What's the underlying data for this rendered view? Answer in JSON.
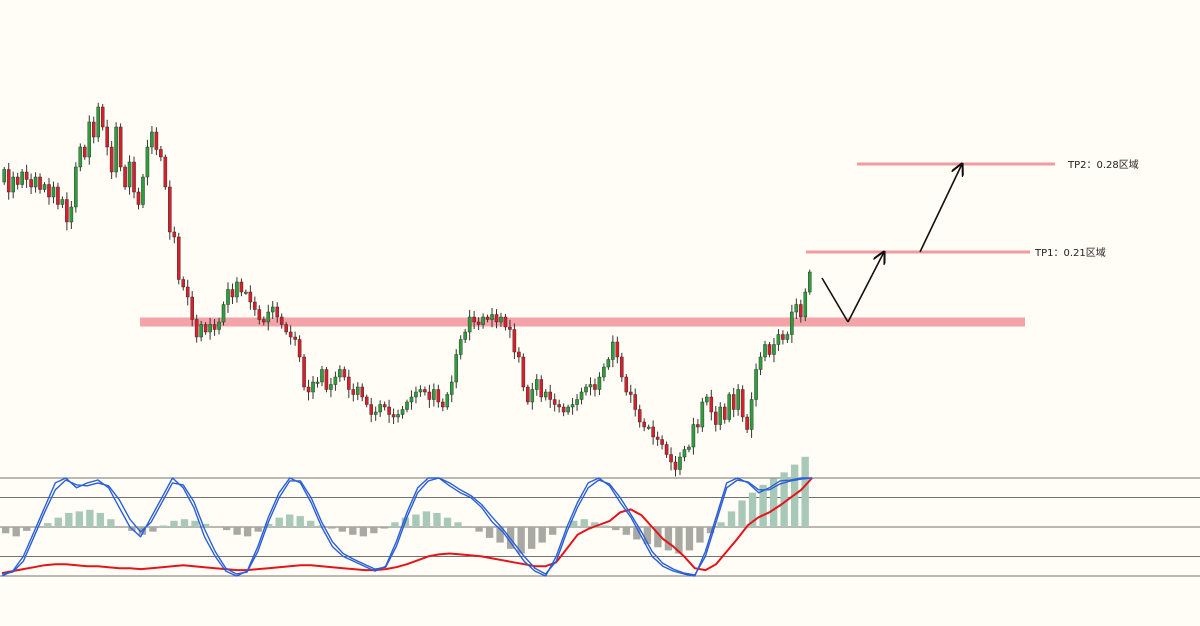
{
  "chart_data": {
    "type": "candlestick",
    "title": "",
    "colors": {
      "background": "#fffdf5",
      "bull": "#2e9e3c",
      "bear": "#d6202b",
      "support": "#f4a3a8",
      "target": "#f29aa0",
      "stoch_blue": "#2a5fd6",
      "stoch_red": "#e4141b",
      "hist_neg": "#a9a9a3",
      "hist_pos": "#a8c8b8",
      "ref_line": "#444444"
    },
    "candles": [
      {
        "o": 0.56,
        "c": 0.61
      },
      {
        "o": 0.61,
        "c": 0.52
      },
      {
        "o": 0.52,
        "c": 0.58
      },
      {
        "o": 0.58,
        "c": 0.55
      },
      {
        "o": 0.55,
        "c": 0.6
      },
      {
        "o": 0.6,
        "c": 0.57
      },
      {
        "o": 0.57,
        "c": 0.54
      },
      {
        "o": 0.54,
        "c": 0.58
      },
      {
        "o": 0.58,
        "c": 0.53
      },
      {
        "o": 0.53,
        "c": 0.55
      },
      {
        "o": 0.55,
        "c": 0.5
      },
      {
        "o": 0.5,
        "c": 0.54
      },
      {
        "o": 0.54,
        "c": 0.47
      },
      {
        "o": 0.47,
        "c": 0.49
      },
      {
        "o": 0.49,
        "c": 0.4
      },
      {
        "o": 0.4,
        "c": 0.46
      },
      {
        "o": 0.46,
        "c": 0.62
      },
      {
        "o": 0.62,
        "c": 0.7
      },
      {
        "o": 0.7,
        "c": 0.66
      },
      {
        "o": 0.66,
        "c": 0.8
      },
      {
        "o": 0.8,
        "c": 0.74
      },
      {
        "o": 0.74,
        "c": 0.86
      },
      {
        "o": 0.86,
        "c": 0.78
      },
      {
        "o": 0.78,
        "c": 0.7
      },
      {
        "o": 0.7,
        "c": 0.6
      },
      {
        "o": 0.6,
        "c": 0.78
      },
      {
        "o": 0.78,
        "c": 0.62
      },
      {
        "o": 0.62,
        "c": 0.54
      },
      {
        "o": 0.54,
        "c": 0.64
      },
      {
        "o": 0.64,
        "c": 0.52
      },
      {
        "o": 0.52,
        "c": 0.47
      },
      {
        "o": 0.47,
        "c": 0.58
      },
      {
        "o": 0.58,
        "c": 0.7
      },
      {
        "o": 0.7,
        "c": 0.76
      },
      {
        "o": 0.76,
        "c": 0.69
      },
      {
        "o": 0.69,
        "c": 0.66
      },
      {
        "o": 0.66,
        "c": 0.54
      },
      {
        "o": 0.54,
        "c": 0.36
      },
      {
        "o": 0.36,
        "c": 0.34
      },
      {
        "o": 0.34,
        "c": 0.17
      },
      {
        "o": 0.17,
        "c": 0.14
      },
      {
        "o": 0.14,
        "c": 0.1
      },
      {
        "o": 0.1,
        "c": 0.01
      },
      {
        "o": 0.01,
        "c": -0.06
      },
      {
        "o": -0.06,
        "c": -0.01
      },
      {
        "o": -0.01,
        "c": -0.04
      },
      {
        "o": -0.04,
        "c": -0.01
      },
      {
        "o": -0.01,
        "c": -0.03
      },
      {
        "o": -0.03,
        "c": 0.0
      },
      {
        "o": 0.0,
        "c": 0.07
      },
      {
        "o": 0.07,
        "c": 0.13
      },
      {
        "o": 0.13,
        "c": 0.1
      },
      {
        "o": 0.1,
        "c": 0.16
      },
      {
        "o": 0.16,
        "c": 0.12
      },
      {
        "o": 0.12,
        "c": 0.12
      },
      {
        "o": 0.12,
        "c": 0.08
      },
      {
        "o": 0.08,
        "c": 0.05
      },
      {
        "o": 0.05,
        "c": 0.01
      },
      {
        "o": 0.01,
        "c": 0.0
      },
      {
        "o": 0.0,
        "c": 0.04
      },
      {
        "o": 0.04,
        "c": 0.06
      },
      {
        "o": 0.06,
        "c": 0.02
      },
      {
        "o": 0.02,
        "c": -0.01
      },
      {
        "o": -0.01,
        "c": -0.04
      },
      {
        "o": -0.04,
        "c": -0.06
      },
      {
        "o": -0.06,
        "c": -0.07
      },
      {
        "o": -0.07,
        "c": -0.14
      },
      {
        "o": -0.14,
        "c": -0.26
      },
      {
        "o": -0.26,
        "c": -0.28
      },
      {
        "o": -0.28,
        "c": -0.24
      },
      {
        "o": -0.24,
        "c": -0.24
      },
      {
        "o": -0.24,
        "c": -0.19
      },
      {
        "o": -0.19,
        "c": -0.27
      },
      {
        "o": -0.27,
        "c": -0.25
      },
      {
        "o": -0.25,
        "c": -0.22
      },
      {
        "o": -0.22,
        "c": -0.19
      },
      {
        "o": -0.19,
        "c": -0.22
      },
      {
        "o": -0.22,
        "c": -0.27
      },
      {
        "o": -0.27,
        "c": -0.29
      },
      {
        "o": -0.29,
        "c": -0.26
      },
      {
        "o": -0.26,
        "c": -0.3
      },
      {
        "o": -0.3,
        "c": -0.33
      },
      {
        "o": -0.33,
        "c": -0.37
      },
      {
        "o": -0.37,
        "c": -0.36
      },
      {
        "o": -0.36,
        "c": -0.33
      },
      {
        "o": -0.33,
        "c": -0.34
      },
      {
        "o": -0.34,
        "c": -0.37
      },
      {
        "o": -0.37,
        "c": -0.38
      },
      {
        "o": -0.38,
        "c": -0.37
      },
      {
        "o": -0.37,
        "c": -0.35
      },
      {
        "o": -0.35,
        "c": -0.32
      },
      {
        "o": -0.32,
        "c": -0.3
      },
      {
        "o": -0.3,
        "c": -0.28
      },
      {
        "o": -0.28,
        "c": -0.27
      },
      {
        "o": -0.27,
        "c": -0.28
      },
      {
        "o": -0.28,
        "c": -0.31
      },
      {
        "o": -0.31,
        "c": -0.27
      },
      {
        "o": -0.27,
        "c": -0.32
      },
      {
        "o": -0.32,
        "c": -0.34
      },
      {
        "o": -0.34,
        "c": -0.29
      },
      {
        "o": -0.29,
        "c": -0.24
      },
      {
        "o": -0.24,
        "c": -0.13
      },
      {
        "o": -0.13,
        "c": -0.07
      },
      {
        "o": -0.07,
        "c": -0.04
      },
      {
        "o": -0.04,
        "c": 0.02
      },
      {
        "o": 0.02,
        "c": 0.0
      },
      {
        "o": 0.0,
        "c": -0.01
      },
      {
        "o": -0.01,
        "c": 0.02
      },
      {
        "o": 0.02,
        "c": 0.01
      },
      {
        "o": 0.01,
        "c": 0.03
      },
      {
        "o": 0.03,
        "c": 0.0
      },
      {
        "o": 0.0,
        "c": 0.02
      },
      {
        "o": 0.02,
        "c": -0.02
      },
      {
        "o": -0.02,
        "c": -0.03
      },
      {
        "o": -0.03,
        "c": -0.12
      },
      {
        "o": -0.12,
        "c": -0.14
      },
      {
        "o": -0.14,
        "c": -0.26
      },
      {
        "o": -0.26,
        "c": -0.32
      },
      {
        "o": -0.32,
        "c": -0.27
      },
      {
        "o": -0.27,
        "c": -0.23
      },
      {
        "o": -0.23,
        "c": -0.3
      },
      {
        "o": -0.3,
        "c": -0.28
      },
      {
        "o": -0.28,
        "c": -0.31
      },
      {
        "o": -0.31,
        "c": -0.33
      },
      {
        "o": -0.33,
        "c": -0.34
      },
      {
        "o": -0.34,
        "c": -0.36
      },
      {
        "o": -0.36,
        "c": -0.34
      },
      {
        "o": -0.34,
        "c": -0.33
      },
      {
        "o": -0.33,
        "c": -0.31
      },
      {
        "o": -0.31,
        "c": -0.28
      },
      {
        "o": -0.28,
        "c": -0.26
      },
      {
        "o": -0.26,
        "c": -0.25
      },
      {
        "o": -0.25,
        "c": -0.27
      },
      {
        "o": -0.27,
        "c": -0.22
      },
      {
        "o": -0.22,
        "c": -0.18
      },
      {
        "o": -0.18,
        "c": -0.15
      },
      {
        "o": -0.15,
        "c": -0.08
      },
      {
        "o": -0.08,
        "c": -0.14
      },
      {
        "o": -0.14,
        "c": -0.22
      },
      {
        "o": -0.22,
        "c": -0.28
      },
      {
        "o": -0.28,
        "c": -0.29
      },
      {
        "o": -0.29,
        "c": -0.35
      },
      {
        "o": -0.35,
        "c": -0.4
      },
      {
        "o": -0.4,
        "c": -0.42
      },
      {
        "o": -0.42,
        "c": -0.42
      },
      {
        "o": -0.42,
        "c": -0.46
      },
      {
        "o": -0.46,
        "c": -0.47
      },
      {
        "o": -0.47,
        "c": -0.49
      },
      {
        "o": -0.49,
        "c": -0.53
      },
      {
        "o": -0.53,
        "c": -0.56
      },
      {
        "o": -0.56,
        "c": -0.59
      },
      {
        "o": -0.59,
        "c": -0.54
      },
      {
        "o": -0.54,
        "c": -0.51
      },
      {
        "o": -0.51,
        "c": -0.5
      },
      {
        "o": -0.5,
        "c": -0.41
      },
      {
        "o": -0.41,
        "c": -0.42
      },
      {
        "o": -0.42,
        "c": -0.32
      },
      {
        "o": -0.32,
        "c": -0.3
      },
      {
        "o": -0.3,
        "c": -0.36
      },
      {
        "o": -0.36,
        "c": -0.41
      },
      {
        "o": -0.41,
        "c": -0.34
      },
      {
        "o": -0.34,
        "c": -0.39
      },
      {
        "o": -0.39,
        "c": -0.29
      },
      {
        "o": -0.29,
        "c": -0.35
      },
      {
        "o": -0.35,
        "c": -0.27
      },
      {
        "o": -0.27,
        "c": -0.38
      },
      {
        "o": -0.38,
        "c": -0.43
      },
      {
        "o": -0.43,
        "c": -0.31
      },
      {
        "o": -0.31,
        "c": -0.19
      },
      {
        "o": -0.19,
        "c": -0.14
      },
      {
        "o": -0.14,
        "c": -0.09
      },
      {
        "o": -0.09,
        "c": -0.13
      },
      {
        "o": -0.13,
        "c": -0.09
      },
      {
        "o": -0.09,
        "c": -0.05
      },
      {
        "o": -0.05,
        "c": -0.07
      },
      {
        "o": -0.07,
        "c": -0.05
      },
      {
        "o": -0.05,
        "c": 0.04
      },
      {
        "o": 0.04,
        "c": 0.07
      },
      {
        "o": 0.07,
        "c": 0.02
      },
      {
        "o": 0.02,
        "c": 0.12
      },
      {
        "o": 0.12,
        "c": 0.2
      }
    ],
    "levels": [
      {
        "name": "support",
        "value": 0.0
      },
      {
        "name": "TP1",
        "value": 0.21,
        "label": "TP1：0.21区域"
      },
      {
        "name": "TP2",
        "value": 0.28,
        "label": "TP2：0.28区域"
      }
    ],
    "projection": {
      "path": [
        0.2,
        0.0,
        0.21,
        0.21,
        0.28
      ]
    },
    "oscillator": {
      "levels": [
        100,
        80,
        50,
        20,
        0
      ],
      "blue_k": [
        0,
        5,
        20,
        45,
        70,
        95,
        100,
        90,
        95,
        98,
        90,
        70,
        50,
        40,
        60,
        80,
        100,
        90,
        70,
        40,
        20,
        5,
        0,
        5,
        30,
        60,
        85,
        100,
        95,
        75,
        50,
        30,
        20,
        15,
        10,
        5,
        10,
        35,
        65,
        90,
        100,
        100,
        92,
        85,
        80,
        70,
        55,
        45,
        30,
        15,
        5,
        0,
        20,
        50,
        75,
        95,
        100,
        92,
        75,
        60,
        40,
        20,
        10,
        5,
        2,
        0,
        25,
        60,
        95,
        100,
        95,
        85,
        90,
        97,
        98,
        100,
        100
      ],
      "blue_d": [
        2,
        4,
        15,
        40,
        65,
        88,
        98,
        93,
        92,
        95,
        92,
        78,
        58,
        45,
        55,
        75,
        95,
        93,
        76,
        48,
        25,
        8,
        2,
        4,
        25,
        55,
        80,
        97,
        97,
        80,
        55,
        35,
        23,
        17,
        12,
        7,
        9,
        30,
        60,
        85,
        97,
        100,
        95,
        88,
        82,
        73,
        60,
        48,
        34,
        20,
        8,
        2,
        15,
        45,
        70,
        90,
        98,
        94,
        80,
        63,
        45,
        25,
        13,
        7,
        3,
        1,
        20,
        55,
        90,
        98,
        96,
        88,
        88,
        94,
        97,
        99,
        100
      ],
      "red": [
        3,
        5,
        7,
        9,
        11,
        12,
        12,
        11,
        10,
        10,
        9,
        8,
        8,
        7,
        8,
        9,
        10,
        11,
        10,
        9,
        8,
        7,
        6,
        6,
        7,
        8,
        9,
        10,
        11,
        11,
        10,
        9,
        8,
        7,
        6,
        6,
        7,
        9,
        12,
        16,
        20,
        22,
        23,
        22,
        21,
        20,
        18,
        16,
        14,
        12,
        10,
        10,
        14,
        28,
        42,
        48,
        52,
        56,
        65,
        68,
        62,
        50,
        38,
        30,
        20,
        8,
        6,
        12,
        25,
        38,
        52,
        60,
        65,
        72,
        80,
        88,
        100
      ],
      "hist": [
        -8,
        -12,
        -5,
        0,
        5,
        12,
        18,
        20,
        22,
        18,
        10,
        0,
        -5,
        -10,
        -6,
        2,
        8,
        10,
        8,
        4,
        0,
        -4,
        -10,
        -12,
        -6,
        4,
        12,
        16,
        14,
        8,
        2,
        -2,
        -6,
        -10,
        -12,
        -8,
        -2,
        6,
        12,
        16,
        20,
        18,
        12,
        6,
        0,
        -6,
        -14,
        -20,
        -28,
        -34,
        -28,
        -20,
        -10,
        0,
        8,
        10,
        6,
        2,
        -4,
        -10,
        -16,
        -22,
        -26,
        -30,
        -34,
        -30,
        -20,
        -8,
        6,
        20,
        34,
        44,
        54,
        62,
        70,
        80,
        90
      ]
    }
  }
}
